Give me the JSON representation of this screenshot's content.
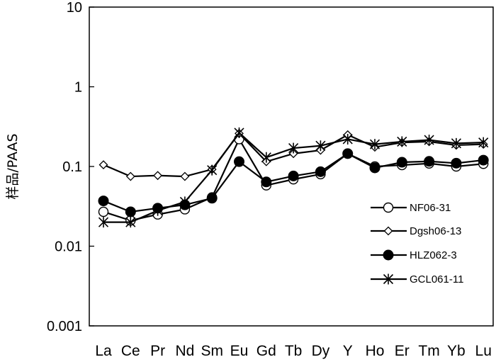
{
  "chart_data": {
    "type": "line",
    "ylabel": "样品/PAAS",
    "xlabel": "",
    "yscale": "log",
    "ylim": [
      0.001,
      10
    ],
    "yticks": [
      0.001,
      0.01,
      0.1,
      1,
      10
    ],
    "ytick_labels": [
      "0.001",
      "0.01",
      "0.1",
      "1",
      "10"
    ],
    "grid": false,
    "legend": "right",
    "categories": [
      "La",
      "Ce",
      "Pr",
      "Nd",
      "Sm",
      "Eu",
      "Gd",
      "Tb",
      "Dy",
      "Y",
      "Ho",
      "Er",
      "Tm",
      "Yb",
      "Lu"
    ],
    "series": [
      {
        "name": "NF06-31",
        "marker": "circle-open",
        "values": [
          0.027,
          0.021,
          0.025,
          0.029,
          0.041,
          0.22,
          0.058,
          0.069,
          0.08,
          0.145,
          0.1,
          0.104,
          0.109,
          0.1,
          0.108
        ]
      },
      {
        "name": "Dgsh06-13",
        "marker": "diamond-open",
        "values": [
          0.105,
          0.075,
          0.077,
          0.075,
          0.092,
          0.26,
          0.115,
          0.145,
          0.16,
          0.25,
          0.175,
          0.2,
          0.205,
          0.185,
          0.19
        ]
      },
      {
        "name": "HLZ062-3",
        "marker": "circle-filled",
        "values": [
          0.037,
          0.027,
          0.03,
          0.033,
          0.04,
          0.115,
          0.064,
          0.076,
          0.086,
          0.145,
          0.096,
          0.113,
          0.116,
          0.11,
          0.12
        ]
      },
      {
        "name": "GCL061-11",
        "marker": "asterisk",
        "values": [
          0.02,
          0.02,
          0.028,
          0.036,
          0.09,
          0.265,
          0.13,
          0.17,
          0.182,
          0.22,
          0.19,
          0.205,
          0.215,
          0.195,
          0.2
        ]
      }
    ]
  }
}
